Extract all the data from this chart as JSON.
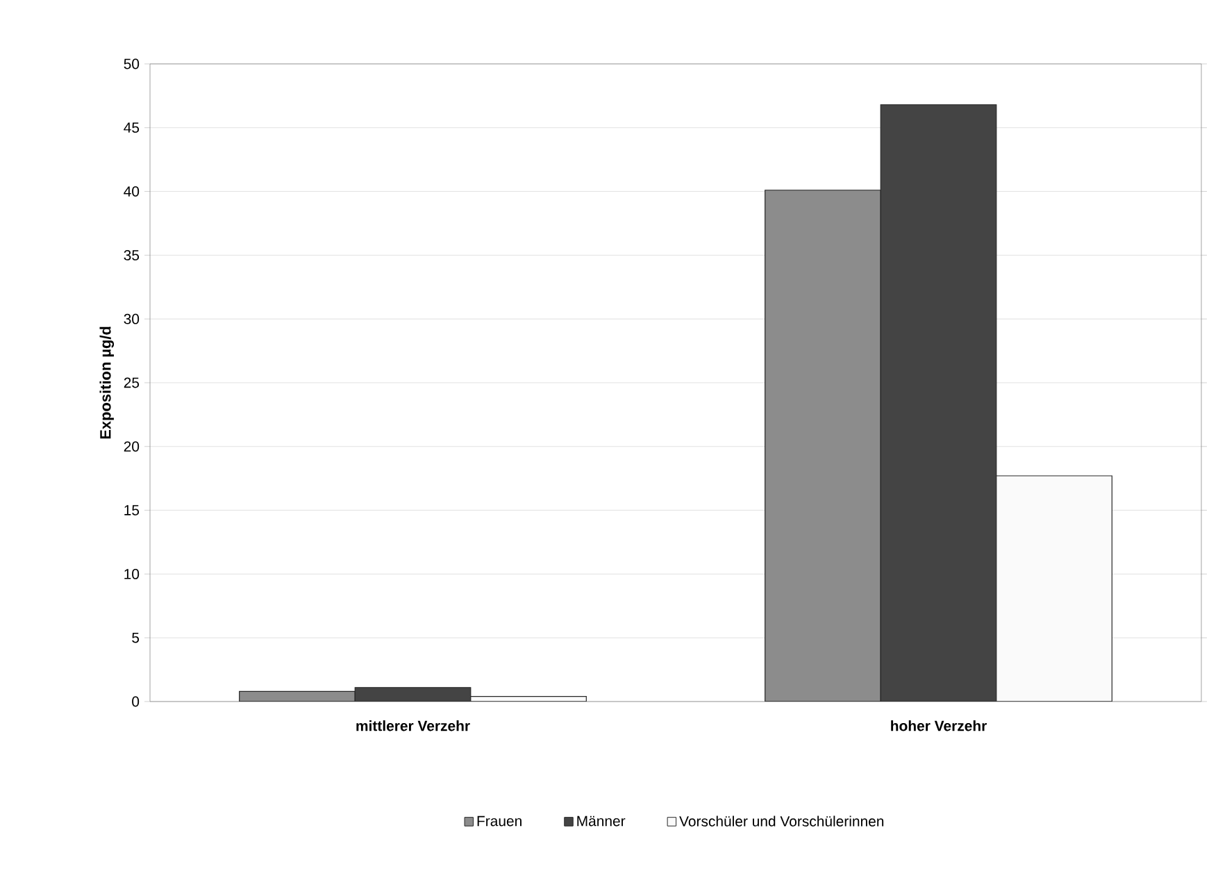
{
  "chart_data": {
    "type": "bar",
    "ylabel": "Exposition µg/d",
    "categories": [
      "mittlerer Verzehr",
      "hoher Verzehr"
    ],
    "series": [
      {
        "name": "Frauen",
        "color": "#8c8c8c",
        "values": [
          0.8,
          40.1
        ]
      },
      {
        "name": "Männer",
        "color": "#444444",
        "values": [
          1.1,
          46.8
        ]
      },
      {
        "name": "Vorschüler und Vorschülerinnen",
        "color": "#fafafa",
        "values": [
          0.4,
          17.7
        ]
      }
    ],
    "ylim": [
      0,
      50
    ],
    "yticks": [
      0,
      5,
      10,
      15,
      20,
      25,
      30,
      35,
      40,
      45,
      50
    ],
    "grid": "y",
    "legend": "bottom"
  }
}
